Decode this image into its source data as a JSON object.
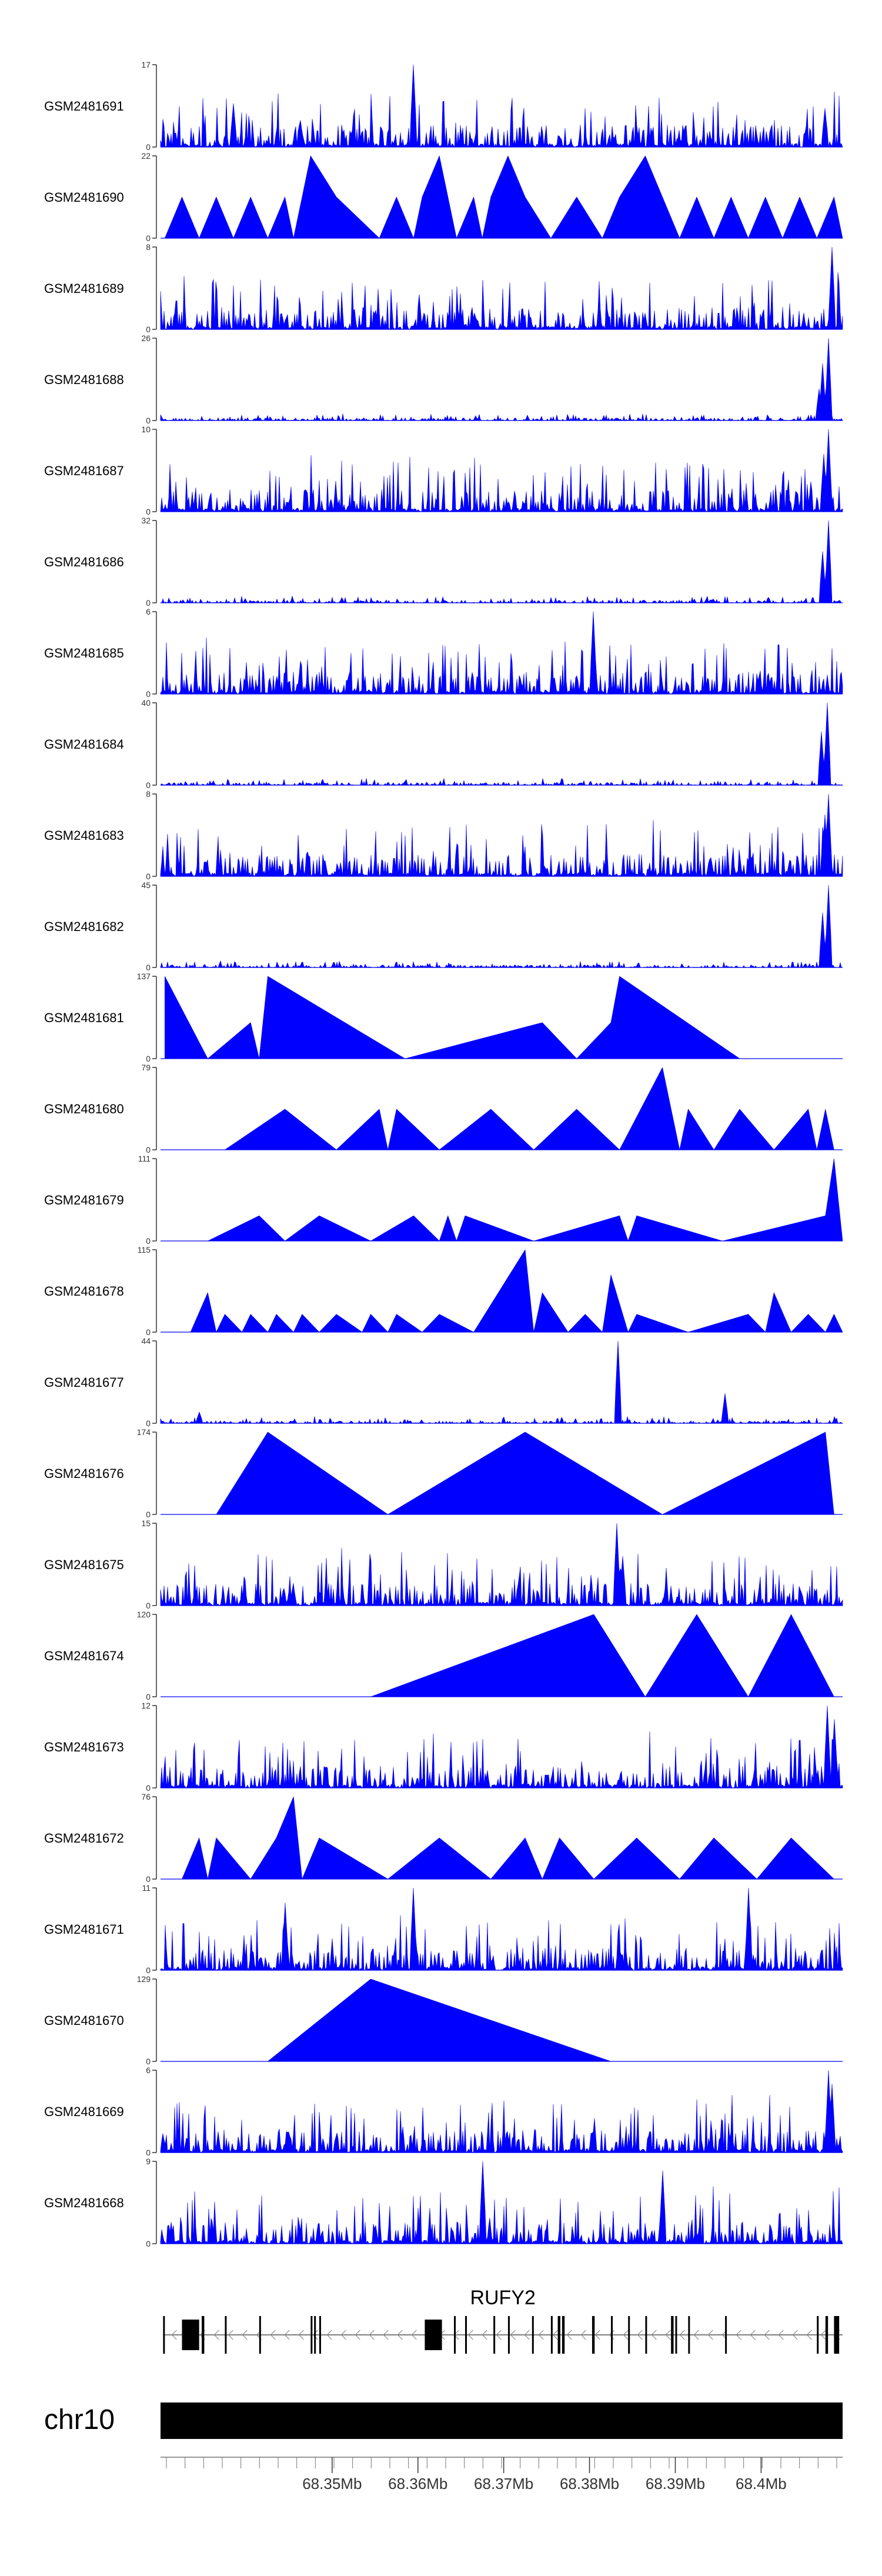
{
  "chart_data": {
    "type": "area",
    "title": "",
    "chromosome": "chr10",
    "gene": "RUFY2",
    "x_range_mb": [
      68.33,
      68.4095
    ],
    "x_ticks_mb": [
      68.35,
      68.36,
      68.37,
      68.38,
      68.39,
      68.4
    ],
    "x_tick_labels": [
      "68.35Mb",
      "68.36Mb",
      "68.37Mb",
      "68.38Mb",
      "68.39Mb",
      "68.4Mb"
    ],
    "colors": {
      "signal": "#0000ff",
      "gene": "#000000",
      "axis": "#333333"
    },
    "tracks": [
      {
        "name": "GSM2481691",
        "ymax": 17,
        "ymin": 0,
        "style": "dense",
        "peaks": [
          {
            "x": 68.3595,
            "y": 17
          },
          {
            "x": 68.4075,
            "y": 8
          },
          {
            "x": 68.3385,
            "y": 9
          }
        ]
      },
      {
        "name": "GSM2481690",
        "ymax": 22,
        "ymin": 0,
        "style": "triangles",
        "points": [
          [
            68.3305,
            0
          ],
          [
            68.3325,
            11
          ],
          [
            68.3345,
            0
          ],
          [
            68.3365,
            11
          ],
          [
            68.3385,
            0
          ],
          [
            68.3405,
            11
          ],
          [
            68.3425,
            0
          ],
          [
            68.3445,
            11
          ],
          [
            68.3455,
            0
          ],
          [
            68.3465,
            11
          ],
          [
            68.3475,
            22
          ],
          [
            68.3505,
            11
          ],
          [
            68.3555,
            0
          ],
          [
            68.3575,
            11
          ],
          [
            68.3595,
            0
          ],
          [
            68.3605,
            11
          ],
          [
            68.3625,
            22
          ],
          [
            68.3645,
            0
          ],
          [
            68.3665,
            11
          ],
          [
            68.3675,
            0
          ],
          [
            68.3685,
            11
          ],
          [
            68.3705,
            22
          ],
          [
            68.3725,
            11
          ],
          [
            68.3755,
            0
          ],
          [
            68.3785,
            11
          ],
          [
            68.3815,
            0
          ],
          [
            68.3835,
            11
          ],
          [
            68.3865,
            22
          ],
          [
            68.3885,
            11
          ],
          [
            68.3905,
            0
          ],
          [
            68.3925,
            11
          ],
          [
            68.3945,
            0
          ],
          [
            68.3965,
            11
          ],
          [
            68.3985,
            0
          ],
          [
            68.4005,
            11
          ],
          [
            68.4025,
            0
          ],
          [
            68.4045,
            11
          ],
          [
            68.4065,
            0
          ],
          [
            68.4085,
            11
          ],
          [
            68.4095,
            0
          ]
        ]
      },
      {
        "name": "GSM2481689",
        "ymax": 8,
        "ymin": 0,
        "style": "dense",
        "peaks": [
          {
            "x": 68.4082,
            "y": 8
          }
        ]
      },
      {
        "name": "GSM2481688",
        "ymax": 26,
        "ymin": 0,
        "style": "dense",
        "peaks": [
          {
            "x": 68.4078,
            "y": 26
          },
          {
            "x": 68.4072,
            "y": 18
          },
          {
            "x": 68.4068,
            "y": 10
          }
        ]
      },
      {
        "name": "GSM2481687",
        "ymax": 10,
        "ymin": 0,
        "style": "dense",
        "peaks": [
          {
            "x": 68.4078,
            "y": 10
          },
          {
            "x": 68.4073,
            "y": 7
          }
        ]
      },
      {
        "name": "GSM2481686",
        "ymax": 32,
        "ymin": 0,
        "style": "dense",
        "peaks": [
          {
            "x": 68.4078,
            "y": 32
          },
          {
            "x": 68.4072,
            "y": 20
          }
        ]
      },
      {
        "name": "GSM2481685",
        "ymax": 6,
        "ymin": 0,
        "style": "dense",
        "peaks": [
          {
            "x": 68.3805,
            "y": 6
          }
        ]
      },
      {
        "name": "GSM2481684",
        "ymax": 40,
        "ymin": 0,
        "style": "dense",
        "peaks": [
          {
            "x": 68.4077,
            "y": 40
          },
          {
            "x": 68.4071,
            "y": 26
          }
        ]
      },
      {
        "name": "GSM2481683",
        "ymax": 8,
        "ymin": 0,
        "style": "dense",
        "peaks": [
          {
            "x": 68.4079,
            "y": 8
          },
          {
            "x": 68.4074,
            "y": 6
          }
        ]
      },
      {
        "name": "GSM2481682",
        "ymax": 45,
        "ymin": 0,
        "style": "dense",
        "peaks": [
          {
            "x": 68.4078,
            "y": 45
          },
          {
            "x": 68.4072,
            "y": 30
          }
        ]
      },
      {
        "name": "GSM2481681",
        "ymax": 137,
        "ymin": 0,
        "style": "triangles",
        "points": [
          [
            68.3305,
            0
          ],
          [
            68.3305,
            137
          ],
          [
            68.3355,
            0
          ],
          [
            68.3405,
            60
          ],
          [
            68.3415,
            0
          ],
          [
            68.3425,
            137
          ],
          [
            68.3585,
            0
          ],
          [
            68.3745,
            60
          ],
          [
            68.3785,
            0
          ],
          [
            68.3825,
            60
          ],
          [
            68.3835,
            137
          ],
          [
            68.3975,
            0
          ]
        ]
      },
      {
        "name": "GSM2481680",
        "ymax": 79,
        "ymin": 0,
        "style": "triangles",
        "points": [
          [
            68.3375,
            0
          ],
          [
            68.3445,
            39
          ],
          [
            68.3505,
            0
          ],
          [
            68.3555,
            39
          ],
          [
            68.3565,
            0
          ],
          [
            68.3575,
            39
          ],
          [
            68.3625,
            0
          ],
          [
            68.3685,
            39
          ],
          [
            68.3735,
            0
          ],
          [
            68.3785,
            39
          ],
          [
            68.3835,
            0
          ],
          [
            68.3885,
            79
          ],
          [
            68.3905,
            0
          ],
          [
            68.3915,
            39
          ],
          [
            68.3945,
            0
          ],
          [
            68.3975,
            39
          ],
          [
            68.4015,
            0
          ],
          [
            68.4055,
            39
          ],
          [
            68.4065,
            0
          ],
          [
            68.4075,
            39
          ],
          [
            68.4085,
            0
          ]
        ]
      },
      {
        "name": "GSM2481679",
        "ymax": 111,
        "ymin": 0,
        "style": "triangles",
        "points": [
          [
            68.3355,
            0
          ],
          [
            68.3415,
            34
          ],
          [
            68.3445,
            0
          ],
          [
            68.3485,
            34
          ],
          [
            68.3545,
            0
          ],
          [
            68.3595,
            34
          ],
          [
            68.3625,
            0
          ],
          [
            68.3635,
            34
          ],
          [
            68.3645,
            0
          ],
          [
            68.3655,
            34
          ],
          [
            68.3735,
            0
          ],
          [
            68.3835,
            34
          ],
          [
            68.3845,
            0
          ],
          [
            68.3855,
            34
          ],
          [
            68.3955,
            0
          ],
          [
            68.4075,
            34
          ],
          [
            68.4085,
            111
          ],
          [
            68.4095,
            0
          ]
        ]
      },
      {
        "name": "GSM2481678",
        "ymax": 115,
        "ymin": 0,
        "style": "triangles",
        "points": [
          [
            68.3335,
            0
          ],
          [
            68.3355,
            55
          ],
          [
            68.3365,
            0
          ],
          [
            68.3375,
            25
          ],
          [
            68.3395,
            0
          ],
          [
            68.3405,
            25
          ],
          [
            68.3425,
            0
          ],
          [
            68.3435,
            25
          ],
          [
            68.3455,
            0
          ],
          [
            68.3465,
            25
          ],
          [
            68.3485,
            0
          ],
          [
            68.3505,
            25
          ],
          [
            68.3535,
            0
          ],
          [
            68.3545,
            25
          ],
          [
            68.3565,
            0
          ],
          [
            68.3575,
            25
          ],
          [
            68.3605,
            0
          ],
          [
            68.3625,
            25
          ],
          [
            68.3665,
            0
          ],
          [
            68.3725,
            115
          ],
          [
            68.3735,
            0
          ],
          [
            68.3745,
            55
          ],
          [
            68.3775,
            0
          ],
          [
            68.3795,
            25
          ],
          [
            68.3815,
            0
          ],
          [
            68.3825,
            80
          ],
          [
            68.3845,
            0
          ],
          [
            68.3855,
            25
          ],
          [
            68.3915,
            0
          ],
          [
            68.3985,
            25
          ],
          [
            68.4005,
            0
          ],
          [
            68.4015,
            55
          ],
          [
            68.4035,
            0
          ],
          [
            68.4055,
            25
          ],
          [
            68.4075,
            0
          ],
          [
            68.4085,
            25
          ],
          [
            68.4095,
            0
          ]
        ]
      },
      {
        "name": "GSM2481677",
        "ymax": 44,
        "ymin": 0,
        "style": "dense",
        "peaks": [
          {
            "x": 68.3833,
            "y": 44
          },
          {
            "x": 68.3958,
            "y": 16
          },
          {
            "x": 68.3345,
            "y": 6
          }
        ]
      },
      {
        "name": "GSM2481676",
        "ymax": 174,
        "ymin": 0,
        "style": "triangles",
        "points": [
          [
            68.3365,
            0
          ],
          [
            68.3425,
            174
          ],
          [
            68.3565,
            0
          ],
          [
            68.3725,
            174
          ],
          [
            68.3885,
            0
          ],
          [
            68.4075,
            174
          ],
          [
            68.4085,
            0
          ]
        ]
      },
      {
        "name": "GSM2481675",
        "ymax": 15,
        "ymin": 0,
        "style": "dense",
        "peaks": [
          {
            "x": 68.3832,
            "y": 15
          },
          {
            "x": 68.3838,
            "y": 9
          }
        ]
      },
      {
        "name": "GSM2481674",
        "ymax": 120,
        "ymin": 0,
        "style": "triangles",
        "points": [
          [
            68.3545,
            0
          ],
          [
            68.3805,
            120
          ],
          [
            68.3865,
            0
          ],
          [
            68.3925,
            120
          ],
          [
            68.3985,
            0
          ],
          [
            68.4035,
            120
          ],
          [
            68.4085,
            0
          ]
        ]
      },
      {
        "name": "GSM2481673",
        "ymax": 12,
        "ymin": 0,
        "style": "dense",
        "peaks": [
          {
            "x": 68.4077,
            "y": 12
          },
          {
            "x": 68.4085,
            "y": 10
          }
        ]
      },
      {
        "name": "GSM2481672",
        "ymax": 76,
        "ymin": 0,
        "style": "triangles",
        "points": [
          [
            68.3325,
            0
          ],
          [
            68.3345,
            38
          ],
          [
            68.3355,
            0
          ],
          [
            68.3365,
            38
          ],
          [
            68.3405,
            0
          ],
          [
            68.3435,
            38
          ],
          [
            68.3455,
            76
          ],
          [
            68.3465,
            0
          ],
          [
            68.3485,
            38
          ],
          [
            68.3565,
            0
          ],
          [
            68.3625,
            38
          ],
          [
            68.3685,
            0
          ],
          [
            68.3725,
            38
          ],
          [
            68.3745,
            0
          ],
          [
            68.3765,
            38
          ],
          [
            68.3805,
            0
          ],
          [
            68.3855,
            38
          ],
          [
            68.3905,
            0
          ],
          [
            68.3945,
            38
          ],
          [
            68.3995,
            0
          ],
          [
            68.4035,
            38
          ],
          [
            68.4085,
            0
          ]
        ]
      },
      {
        "name": "GSM2481671",
        "ymax": 11,
        "ymin": 0,
        "style": "dense",
        "peaks": [
          {
            "x": 68.3595,
            "y": 11
          },
          {
            "x": 68.3985,
            "y": 11
          },
          {
            "x": 68.3445,
            "y": 9
          }
        ]
      },
      {
        "name": "GSM2481670",
        "ymax": 129,
        "ymin": 0,
        "style": "triangles",
        "points": [
          [
            68.3425,
            0
          ],
          [
            68.3545,
            129
          ],
          [
            68.3825,
            0
          ]
        ]
      },
      {
        "name": "GSM2481669",
        "ymax": 6,
        "ymin": 0,
        "style": "dense",
        "peaks": [
          {
            "x": 68.4078,
            "y": 6
          },
          {
            "x": 68.4083,
            "y": 5
          }
        ]
      },
      {
        "name": "GSM2481668",
        "ymax": 9,
        "ymin": 0,
        "style": "dense",
        "peaks": [
          {
            "x": 68.3675,
            "y": 9
          },
          {
            "x": 68.3885,
            "y": 8
          }
        ]
      }
    ],
    "gene_model": {
      "strand": "-",
      "span_mb": [
        68.3303,
        68.4095
      ],
      "exons_mb": [
        [
          68.3303,
          68.3305
        ],
        [
          68.3325,
          68.3345
        ],
        [
          68.3348,
          68.3351
        ],
        [
          68.3375,
          68.3377
        ],
        [
          68.3415,
          68.3417
        ],
        [
          68.3475,
          68.3477
        ],
        [
          68.3479,
          68.3481
        ],
        [
          68.3485,
          68.3487
        ],
        [
          68.3608,
          68.3628
        ],
        [
          68.3642,
          68.3644
        ],
        [
          68.3655,
          68.3657
        ],
        [
          68.3688,
          68.369
        ],
        [
          68.3705,
          68.3707
        ],
        [
          68.3733,
          68.3735
        ],
        [
          68.3755,
          68.3757
        ],
        [
          68.3763,
          68.3766
        ],
        [
          68.3768,
          68.3771
        ],
        [
          68.3803,
          68.3806
        ],
        [
          68.3825,
          68.3827
        ],
        [
          68.3845,
          68.3847
        ],
        [
          68.3865,
          68.3867
        ],
        [
          68.3895,
          68.3898
        ],
        [
          68.39,
          68.3902
        ],
        [
          68.3915,
          68.3917
        ],
        [
          68.3958,
          68.396
        ],
        [
          68.4065,
          68.4067
        ],
        [
          68.4075,
          68.4078
        ],
        [
          68.4085,
          68.4091
        ]
      ]
    }
  }
}
